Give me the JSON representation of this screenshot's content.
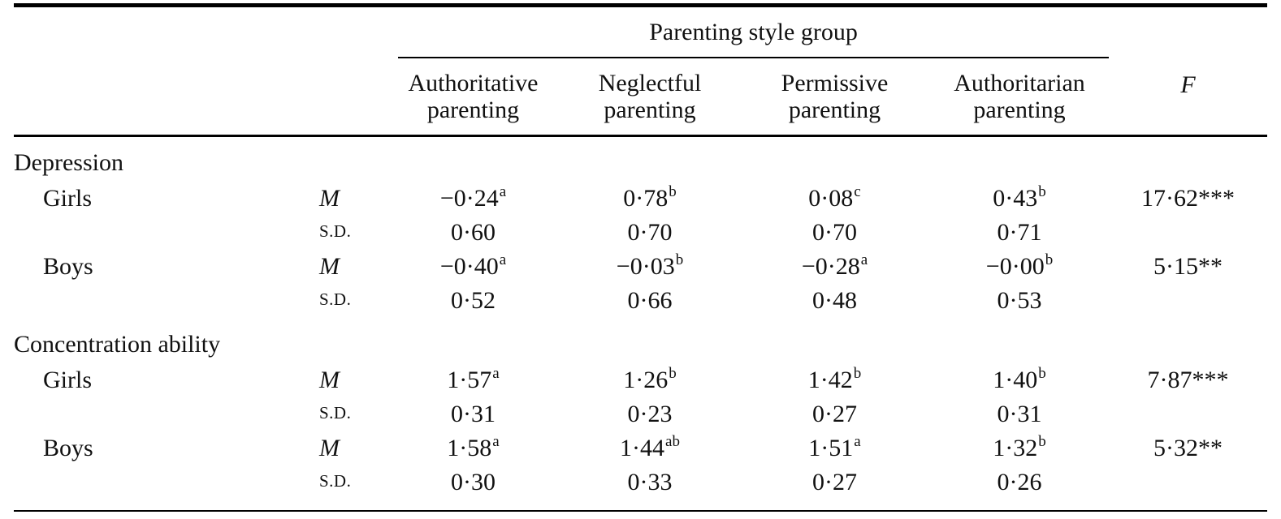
{
  "table": {
    "spanner": "Parenting style group",
    "columns": [
      "Authoritative parenting",
      "Neglectful parenting",
      "Permissive parenting",
      "Authoritarian parenting"
    ],
    "f_label": "F",
    "rows": [
      {
        "label": "Depression"
      },
      {
        "label": "Girls",
        "stat": "M",
        "v0": "−0·24",
        "s0": "a",
        "v1": "0·78",
        "s1": "b",
        "v2": "0·08",
        "s2": "c",
        "v3": "0·43",
        "s3": "b",
        "f": "17·62***"
      },
      {
        "label": "",
        "stat": "S.D.",
        "v0": "0·60",
        "v1": "0·70",
        "v2": "0·70",
        "v3": "0·71",
        "f": ""
      },
      {
        "label": "Boys",
        "stat": "M",
        "v0": "−0·40",
        "s0": "a",
        "v1": "−0·03",
        "s1": "b",
        "v2": "−0·28",
        "s2": "a",
        "v3": "−0·00",
        "s3": "b",
        "f": "5·15**"
      },
      {
        "label": "",
        "stat": "S.D.",
        "v0": "0·52",
        "v1": "0·66",
        "v2": "0·48",
        "v3": "0·53",
        "f": ""
      },
      {
        "label": "Concentration ability"
      },
      {
        "label": "Girls",
        "stat": "M",
        "v0": "1·57",
        "s0": "a",
        "v1": "1·26",
        "s1": "b",
        "v2": "1·42",
        "s2": "b",
        "v3": "1·40",
        "s3": "b",
        "f": "7·87***"
      },
      {
        "label": "",
        "stat": "S.D.",
        "v0": "0·31",
        "v1": "0·23",
        "v2": "0·27",
        "v3": "0·31",
        "f": ""
      },
      {
        "label": "Boys",
        "stat": "M",
        "v0": "1·58",
        "s0": "a",
        "v1": "1·44",
        "s1": "ab",
        "v2": "1·51",
        "s2": "a",
        "v3": "1·32",
        "s3": "b",
        "f": "5·32**"
      },
      {
        "label": "",
        "stat": "S.D.",
        "v0": "0·30",
        "v1": "0·33",
        "v2": "0·27",
        "v3": "0·26",
        "f": ""
      }
    ]
  }
}
